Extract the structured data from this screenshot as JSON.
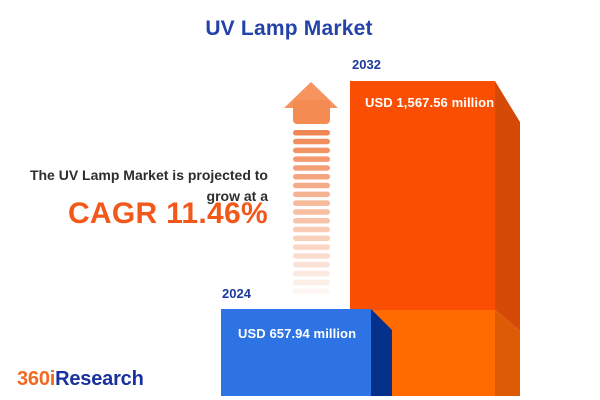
{
  "header": {
    "title": "UV Lamp Market"
  },
  "annotation": {
    "line1": "The UV Lamp Market is projected to",
    "line2": "grow at a",
    "cagr": "CAGR 11.46%"
  },
  "bars": [
    {
      "year": "2024",
      "value_label": "USD 657.94 million"
    },
    {
      "year": "2032",
      "value_label": "USD 1,567.56 million"
    }
  ],
  "logo": {
    "prefix": "360i",
    "suffix": "Research"
  },
  "icons": {
    "growth_arrow": "up-arrow-fading-dashes"
  },
  "colors": {
    "background": "#ffffff",
    "title_blue": "#2443a8",
    "year_label_blue": "#1d3a9d",
    "text_dark": "#2d2d2d",
    "accent_orange": "#f3581b",
    "value_text": "#ffffff",
    "bar_2024_front": "#2e73e3",
    "bar_2024_side": "#05318b",
    "bar_2032_front": "#fa4e03",
    "bar_2032_side": "#d54a07",
    "bar_2032_lower_front": "#ff6b01",
    "bar_2032_lower_side": "#dc5b04",
    "arrow_head": "#f7935e",
    "arrow_stem": "#f38b52",
    "arrow_dash": "#ef7d45",
    "logo_orange": "#f26a21",
    "logo_blue": "#18319e"
  },
  "chart_data": {
    "type": "bar",
    "title": "UV Lamp Market",
    "orientation": "vertical",
    "categories": [
      "2024",
      "2032"
    ],
    "values": [
      657.94,
      1567.56
    ],
    "unit": "USD million",
    "value_labels": [
      "USD 657.94 million",
      "USD 1,567.56 million"
    ],
    "cagr_percent": 11.46,
    "bar_colors": [
      "#2e73e3",
      "#fa4e03"
    ],
    "axes": false,
    "grid": false,
    "legend": false
  }
}
